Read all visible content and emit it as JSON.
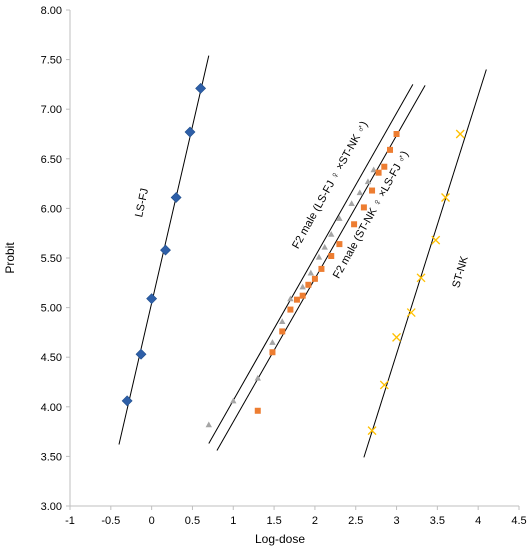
{
  "chart_data": {
    "type": "scatter",
    "title": "",
    "xlabel": "Log-dose",
    "ylabel": "Probit",
    "xlim": [
      -1,
      4.5
    ],
    "ylim": [
      3.0,
      8.0
    ],
    "x_ticks": [
      -1,
      -0.5,
      0,
      0.5,
      1,
      1.5,
      2,
      2.5,
      3,
      3.5,
      4,
      4.5
    ],
    "y_ticks": [
      3.0,
      3.5,
      4.0,
      4.5,
      5.0,
      5.5,
      6.0,
      6.5,
      7.0,
      7.5,
      8.0
    ],
    "x_tick_labels": [
      "-1",
      "-0.5",
      "0",
      "0.5",
      "1",
      "1.5",
      "2",
      "2.5",
      "3",
      "3.5",
      "4",
      "4.5"
    ],
    "y_tick_labels": [
      "3.00",
      "3.50",
      "4.00",
      "4.50",
      "5.00",
      "5.50",
      "6.00",
      "6.50",
      "7.00",
      "7.50",
      "8.00"
    ],
    "grid": false,
    "series": [
      {
        "name": "LS-FJ",
        "marker": "diamond",
        "color": "#2e5fa8",
        "points": [
          [
            -0.3,
            4.06
          ],
          [
            -0.13,
            4.53
          ],
          [
            0.0,
            5.09
          ],
          [
            0.17,
            5.58
          ],
          [
            0.3,
            6.11
          ],
          [
            0.47,
            6.77
          ],
          [
            0.6,
            7.21
          ]
        ],
        "fit": [
          [
            -0.4,
            3.62
          ],
          [
            0.7,
            7.54
          ]
        ]
      },
      {
        "name": "F2 male (LS-FJ ♀ ×ST-NK ♂)",
        "marker": "triangle",
        "color": "#a5a5a5",
        "points": [
          [
            0.7,
            3.82
          ],
          [
            1.0,
            4.06
          ],
          [
            1.3,
            4.29
          ],
          [
            1.48,
            4.65
          ],
          [
            1.6,
            4.86
          ],
          [
            1.7,
            5.09
          ],
          [
            1.85,
            5.21
          ],
          [
            1.95,
            5.35
          ],
          [
            2.05,
            5.51
          ],
          [
            2.12,
            5.61
          ],
          [
            2.2,
            5.74
          ],
          [
            2.3,
            5.9
          ],
          [
            2.45,
            6.05
          ],
          [
            2.55,
            6.16
          ],
          [
            2.65,
            6.27
          ],
          [
            2.72,
            6.39
          ]
        ],
        "fit": [
          [
            0.7,
            3.63
          ],
          [
            3.2,
            7.25
          ]
        ]
      },
      {
        "name": "F2 male (ST-NK ♀ ×LS-FJ ♂)",
        "marker": "square",
        "color": "#ed7d31",
        "points": [
          [
            1.3,
            3.96
          ],
          [
            1.48,
            4.55
          ],
          [
            1.6,
            4.76
          ],
          [
            1.7,
            4.98
          ],
          [
            1.78,
            5.08
          ],
          [
            1.85,
            5.12
          ],
          [
            1.92,
            5.23
          ],
          [
            2.0,
            5.29
          ],
          [
            2.08,
            5.39
          ],
          [
            2.2,
            5.52
          ],
          [
            2.3,
            5.64
          ],
          [
            2.48,
            5.84
          ],
          [
            2.6,
            6.01
          ],
          [
            2.7,
            6.18
          ],
          [
            2.78,
            6.36
          ],
          [
            2.85,
            6.42
          ],
          [
            2.92,
            6.59
          ],
          [
            3.0,
            6.75
          ]
        ],
        "fit": [
          [
            0.8,
            3.56
          ],
          [
            3.35,
            7.24
          ]
        ]
      },
      {
        "name": "ST-NK",
        "marker": "x",
        "color": "#ffc000",
        "points": [
          [
            2.7,
            3.76
          ],
          [
            2.85,
            4.22
          ],
          [
            3.0,
            4.7
          ],
          [
            3.18,
            4.95
          ],
          [
            3.3,
            5.3
          ],
          [
            3.48,
            5.68
          ],
          [
            3.6,
            6.11
          ],
          [
            3.78,
            6.75
          ]
        ],
        "fit": [
          [
            2.6,
            3.49
          ],
          [
            4.1,
            7.4
          ]
        ]
      }
    ],
    "annotations": [
      {
        "text": "LS-FJ",
        "x": -0.08,
        "y": 6.05,
        "rotate": -78
      },
      {
        "text": "F2 male (LS-FJ ♀ ×ST-NK ♂)",
        "x": 2.22,
        "y": 6.22,
        "rotate": -61
      },
      {
        "text": "F2 male (ST-NK ♀ ×LS-FJ ♂)",
        "x": 2.72,
        "y": 5.92,
        "rotate": -61
      },
      {
        "text": "ST-NK",
        "x": 3.82,
        "y": 5.35,
        "rotate": -74
      }
    ]
  }
}
